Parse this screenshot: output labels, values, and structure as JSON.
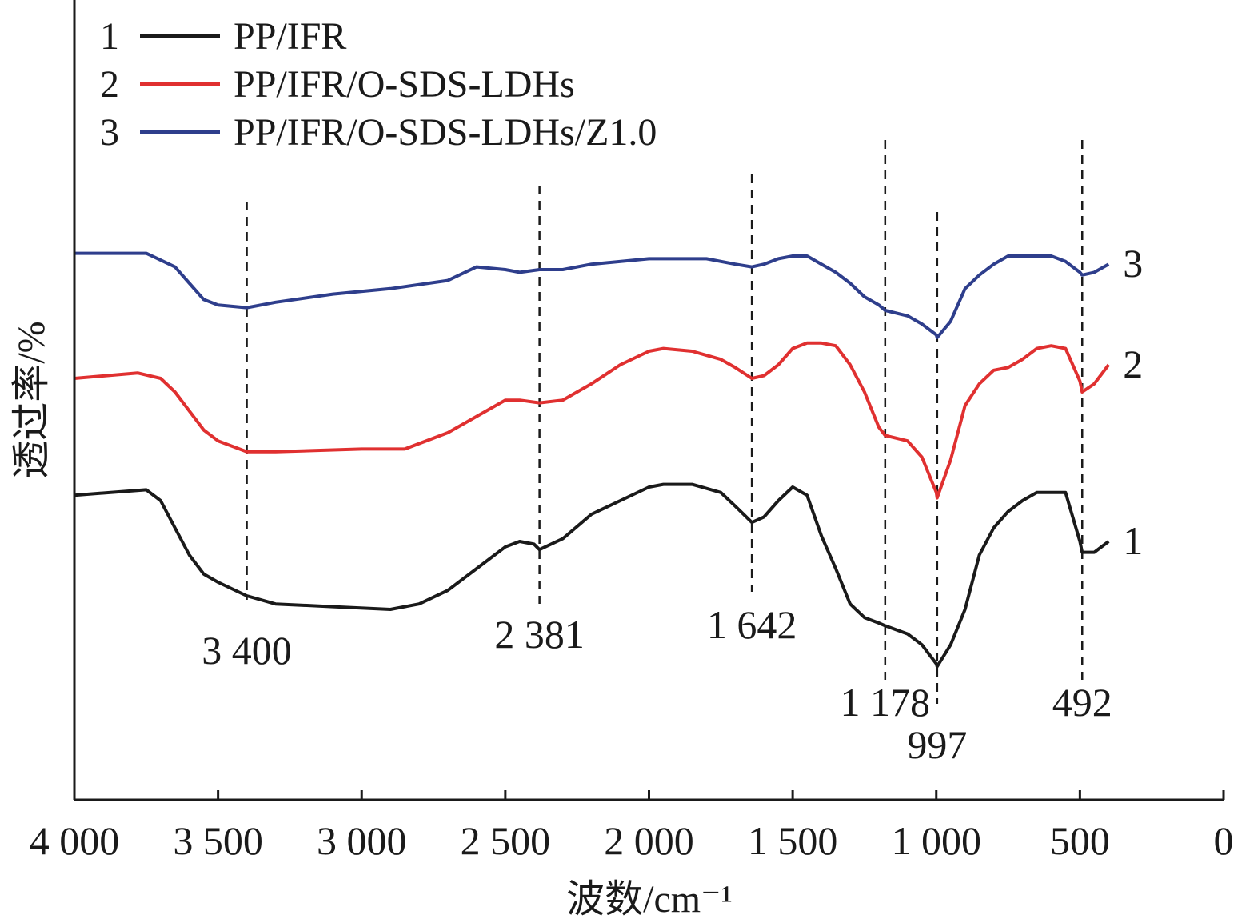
{
  "chart_data": {
    "type": "line",
    "xlabel": "波数/cm⁻¹",
    "ylabel": "透过率/%",
    "xlim": [
      4000,
      0
    ],
    "x_ticks": [
      4000,
      3500,
      3000,
      2500,
      2000,
      1500,
      1000,
      500,
      0
    ],
    "x_tick_labels": [
      "4 000",
      "3 500",
      "3 000",
      "2 500",
      "2 000",
      "1 500",
      "1 000",
      "500",
      "0"
    ],
    "y_ticks_shown": false,
    "grid": false,
    "legend_position": "top-left",
    "legend": [
      {
        "number": "1",
        "label": "PP/IFR",
        "color": "#1a1a1a"
      },
      {
        "number": "2",
        "label": "PP/IFR/O-SDS-LDHs",
        "color": "#e03030"
      },
      {
        "number": "3",
        "label": "PP/IFR/O-SDS-LDHs/Z1.0",
        "color": "#2e3e8c"
      }
    ],
    "annotations": [
      {
        "x": 3400,
        "label": "3 400"
      },
      {
        "x": 2381,
        "label": "2 381"
      },
      {
        "x": 1642,
        "label": "1 642"
      },
      {
        "x": 1178,
        "label": "1 178"
      },
      {
        "x": 997,
        "label": "997"
      },
      {
        "x": 492,
        "label": "492"
      }
    ],
    "series": [
      {
        "name": "PP/IFR",
        "end_label": "1",
        "color": "#1a1a1a",
        "x": [
          4000,
          3750,
          3700,
          3650,
          3600,
          3550,
          3500,
          3400,
          3300,
          3100,
          2900,
          2800,
          2700,
          2600,
          2500,
          2450,
          2400,
          2381,
          2300,
          2200,
          2100,
          2000,
          1950,
          1850,
          1750,
          1700,
          1642,
          1600,
          1550,
          1500,
          1450,
          1400,
          1350,
          1300,
          1250,
          1200,
          1178,
          1100,
          1050,
          1000,
          997,
          950,
          900,
          850,
          800,
          750,
          700,
          650,
          550,
          500,
          492,
          450,
          400
        ],
        "y": [
          62,
          64,
          60,
          50,
          40,
          33,
          30,
          25,
          22,
          21,
          20,
          22,
          27,
          35,
          43,
          45,
          44,
          42,
          46,
          55,
          60,
          65,
          66,
          66,
          63,
          58,
          52,
          54,
          60,
          65,
          62,
          47,
          35,
          22,
          17,
          15,
          14,
          11,
          7,
          0,
          -1,
          7,
          20,
          40,
          50,
          56,
          60,
          63,
          63,
          45,
          41,
          41,
          45
        ]
      },
      {
        "name": "PP/IFR/O-SDS-LDHs",
        "end_label": "2",
        "color": "#e03030",
        "x": [
          4000,
          3780,
          3700,
          3650,
          3600,
          3550,
          3500,
          3400,
          3300,
          3000,
          2850,
          2700,
          2600,
          2500,
          2450,
          2381,
          2300,
          2200,
          2100,
          2000,
          1950,
          1850,
          1750,
          1700,
          1642,
          1600,
          1550,
          1500,
          1450,
          1400,
          1350,
          1300,
          1250,
          1200,
          1178,
          1100,
          1050,
          1000,
          997,
          950,
          900,
          850,
          800,
          750,
          700,
          650,
          600,
          550,
          500,
          492,
          450,
          400
        ],
        "y": [
          105,
          107,
          105,
          100,
          93,
          86,
          82,
          78,
          78,
          79,
          79,
          85,
          91,
          97,
          97,
          96,
          97,
          103,
          110,
          115,
          116,
          115,
          112,
          109,
          105,
          106,
          110,
          116,
          118,
          118,
          117,
          110,
          100,
          87,
          84,
          82,
          76,
          63,
          61,
          75,
          95,
          103,
          108,
          109,
          112,
          116,
          117,
          116,
          104,
          100,
          103,
          110
        ]
      },
      {
        "name": "PP/IFR/O-SDS-LDHs/Z1.0",
        "end_label": "3",
        "color": "#2e3e8c",
        "x": [
          4000,
          3750,
          3650,
          3600,
          3550,
          3500,
          3400,
          3300,
          3100,
          2900,
          2700,
          2600,
          2500,
          2450,
          2381,
          2300,
          2200,
          2000,
          1900,
          1800,
          1700,
          1642,
          1600,
          1550,
          1500,
          1450,
          1400,
          1350,
          1300,
          1250,
          1200,
          1178,
          1100,
          1050,
          1000,
          997,
          950,
          900,
          850,
          800,
          750,
          700,
          650,
          600,
          550,
          500,
          492,
          450,
          400
        ],
        "y": [
          151,
          151,
          146,
          140,
          134,
          132,
          131,
          133,
          136,
          138,
          141,
          146,
          145,
          144,
          145,
          145,
          147,
          149,
          149,
          149,
          147,
          146,
          147,
          149,
          150,
          150,
          147,
          144,
          140,
          135,
          132,
          130,
          128,
          125,
          121,
          120,
          126,
          138,
          143,
          147,
          150,
          150,
          150,
          150,
          148,
          144,
          143,
          144,
          147
        ]
      }
    ]
  }
}
